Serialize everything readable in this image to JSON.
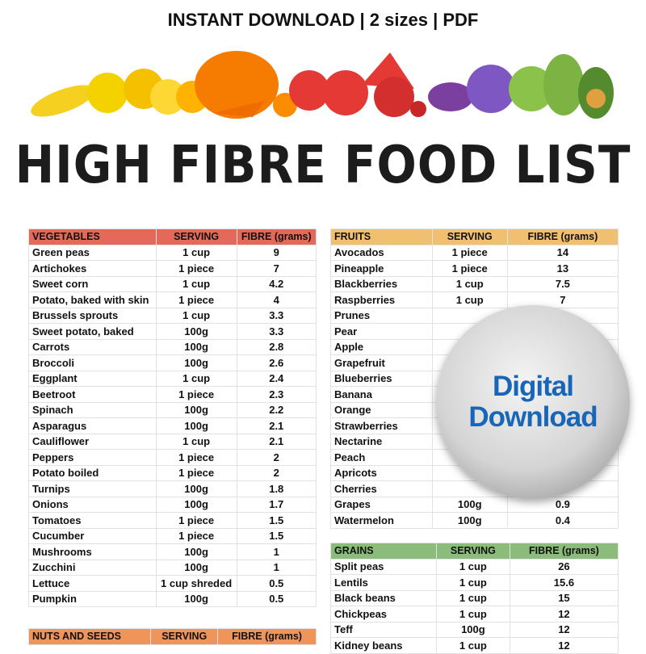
{
  "header": {
    "tagline": "INSTANT DOWNLOAD | 2 sizes | PDF",
    "title": "HIGH FIBRE FOOD LIST"
  },
  "badge": {
    "line1": "Digital",
    "line2": "Download",
    "text_color": "#1766b8"
  },
  "tables": {
    "vegetables": {
      "headers": [
        "VEGETABLES",
        "SERVING",
        "FIBRE (grams)"
      ],
      "color": "#e5695a",
      "rows": [
        [
          "Green peas",
          "1 cup",
          "9"
        ],
        [
          "Artichokes",
          "1 piece",
          "7"
        ],
        [
          "Sweet corn",
          "1 cup",
          "4.2"
        ],
        [
          "Potato, baked with  skin",
          "1 piece",
          "4"
        ],
        [
          "Brussels sprouts",
          "1 cup",
          "3.3"
        ],
        [
          "Sweet potato, baked",
          "100g",
          "3.3"
        ],
        [
          "Carrots",
          "100g",
          "2.8"
        ],
        [
          "Broccoli",
          "100g",
          "2.6"
        ],
        [
          "Eggplant",
          "1 cup",
          "2.4"
        ],
        [
          "Beetroot",
          "1 piece",
          "2.3"
        ],
        [
          "Spinach",
          "100g",
          "2.2"
        ],
        [
          "Asparagus",
          "100g",
          "2.1"
        ],
        [
          "Cauliflower",
          "1 cup",
          "2.1"
        ],
        [
          "Peppers",
          "1 piece",
          "2"
        ],
        [
          "Potato boiled",
          "1 piece",
          "2"
        ],
        [
          "Turnips",
          "100g",
          "1.8"
        ],
        [
          "Onions",
          "100g",
          "1.7"
        ],
        [
          "Tomatoes",
          "1 piece",
          "1.5"
        ],
        [
          "Cucumber",
          "1 piece",
          "1.5"
        ],
        [
          "Mushrooms",
          "100g",
          "1"
        ],
        [
          "Zucchini",
          "100g",
          "1"
        ],
        [
          "Lettuce",
          "1 cup shreded",
          "0.5"
        ],
        [
          "Pumpkin",
          "100g",
          "0.5"
        ]
      ]
    },
    "fruits": {
      "headers": [
        "FRUITS",
        "SERVING",
        "FIBRE (grams)"
      ],
      "color": "#f0c070",
      "rows": [
        [
          "Avocados",
          "1 piece",
          "14"
        ],
        [
          "Pineapple",
          "1 piece",
          "13"
        ],
        [
          "Blackberries",
          "1 cup",
          "7.5"
        ],
        [
          "Raspberries",
          "1 cup",
          "7"
        ],
        [
          "Prunes",
          "",
          "7"
        ],
        [
          "Pear",
          "",
          ""
        ],
        [
          "Apple",
          "",
          ""
        ],
        [
          "Grapefruit",
          "",
          ""
        ],
        [
          "Blueberries",
          "",
          ""
        ],
        [
          "Banana",
          "",
          ""
        ],
        [
          "Orange",
          "",
          ""
        ],
        [
          "Strawberries",
          "",
          ""
        ],
        [
          "Nectarine",
          "",
          ""
        ],
        [
          "Peach",
          "",
          ""
        ],
        [
          "Apricots",
          "",
          ""
        ],
        [
          "Cherries",
          "",
          ""
        ],
        [
          "Grapes",
          "100g",
          "0.9"
        ],
        [
          "Watermelon",
          "100g",
          "0.4"
        ]
      ]
    },
    "grains": {
      "headers": [
        "GRAINS",
        "SERVING",
        "FIBRE (grams)"
      ],
      "color": "#8cbc7c",
      "rows": [
        [
          "Split peas",
          "1 cup",
          "26"
        ],
        [
          "Lentils",
          "1 cup",
          "15.6"
        ],
        [
          "Black beans",
          "1 cup",
          "15"
        ],
        [
          "Chickpeas",
          "1 cup",
          "12"
        ],
        [
          "Teff",
          "100g",
          "12"
        ],
        [
          "Kidney beans",
          "1 cup",
          "12"
        ]
      ]
    },
    "nuts": {
      "headers": [
        "NUTS AND SEEDS",
        "SERVING",
        "FIBRE (grams)"
      ],
      "color": "#f0955a",
      "rows": []
    }
  }
}
